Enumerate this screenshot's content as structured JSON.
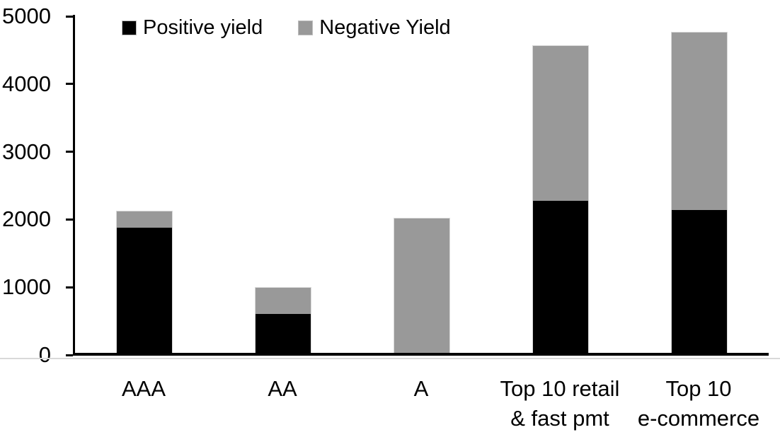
{
  "chart_data": {
    "type": "bar",
    "stacked": true,
    "title": "",
    "xlabel": "",
    "ylabel": "",
    "categories": [
      "AAA",
      "AA",
      "A",
      "Top 10 retail\n& fast pmt",
      "Top 10\ne-commerce"
    ],
    "series": [
      {
        "name": "Positive yield",
        "color": "#000000",
        "values": [
          1890,
          620,
          40,
          2290,
          2150
        ]
      },
      {
        "name": "Negative Yield",
        "color": "#999999",
        "values": [
          240,
          380,
          1990,
          2280,
          2620
        ]
      }
    ],
    "stack_totals": [
      2130,
      1000,
      2030,
      4570,
      4770
    ],
    "ylim": [
      0,
      5000
    ],
    "yticks": [
      0,
      1000,
      2000,
      3000,
      4000,
      5000
    ],
    "grid": false,
    "legend_position": "top-inside-left"
  },
  "legend": {
    "items": [
      {
        "label": "Positive yield",
        "color": "#000000"
      },
      {
        "label": "Negative Yield",
        "color": "#999999"
      }
    ]
  }
}
